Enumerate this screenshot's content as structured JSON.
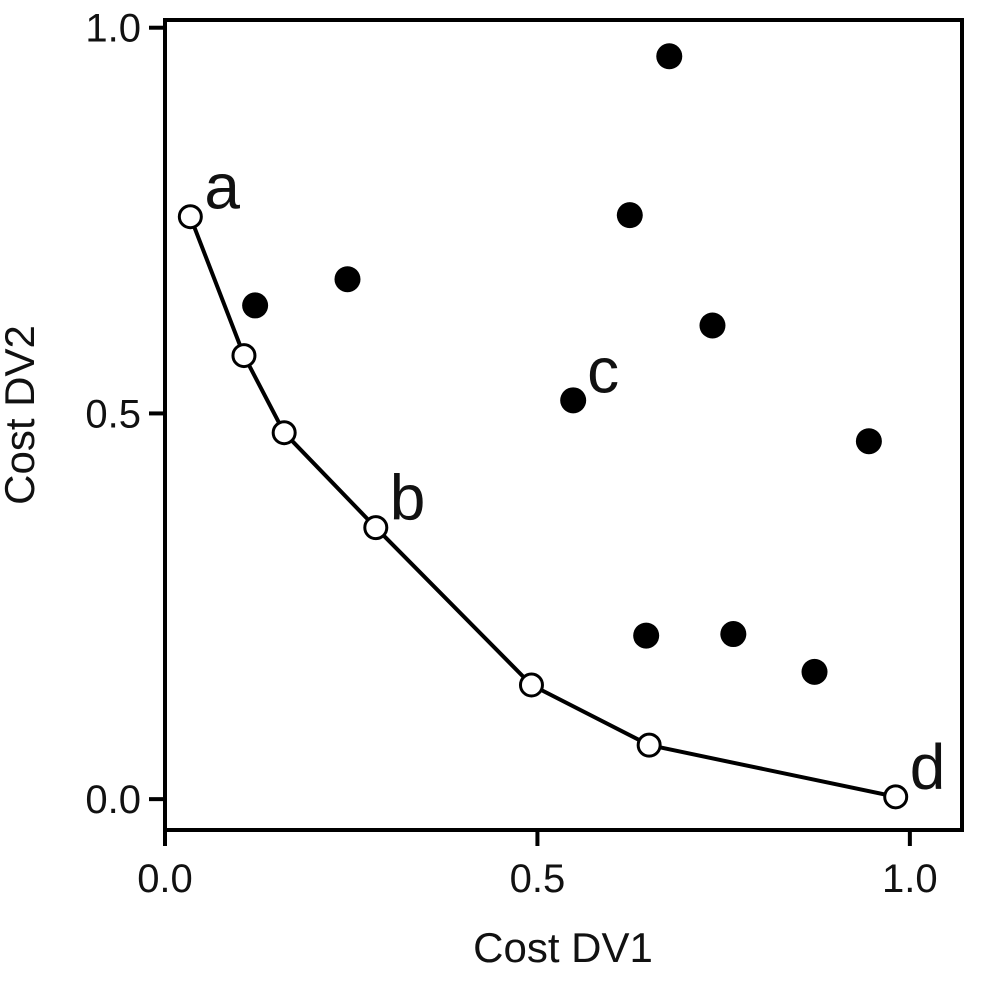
{
  "chart_data": {
    "type": "scatter",
    "xlabel": "Cost DV1",
    "ylabel": "Cost DV2",
    "xlim": [
      0.0,
      1.07
    ],
    "ylim": [
      -0.04,
      1.01
    ],
    "x_ticks": [
      {
        "value": 0.0,
        "label": "0.0"
      },
      {
        "value": 0.5,
        "label": "0.5"
      },
      {
        "value": 1.0,
        "label": "1.0"
      }
    ],
    "y_ticks": [
      {
        "value": 0.0,
        "label": "0.0"
      },
      {
        "value": 0.5,
        "label": "0.5"
      },
      {
        "value": 1.0,
        "label": "1.0"
      }
    ],
    "grid": false,
    "series": [
      {
        "marker": "open-circle",
        "connected": true,
        "color": "#000000",
        "points": [
          {
            "x": 0.034,
            "y": 0.755
          },
          {
            "x": 0.106,
            "y": 0.575
          },
          {
            "x": 0.16,
            "y": 0.475
          },
          {
            "x": 0.283,
            "y": 0.352
          },
          {
            "x": 0.492,
            "y": 0.148
          },
          {
            "x": 0.65,
            "y": 0.07
          },
          {
            "x": 0.981,
            "y": 0.003
          }
        ]
      },
      {
        "marker": "filled-circle",
        "connected": false,
        "color": "#000000",
        "points": [
          {
            "x": 0.121,
            "y": 0.64
          },
          {
            "x": 0.245,
            "y": 0.674
          },
          {
            "x": 0.548,
            "y": 0.517
          },
          {
            "x": 0.624,
            "y": 0.757
          },
          {
            "x": 0.677,
            "y": 0.963
          },
          {
            "x": 0.735,
            "y": 0.614
          },
          {
            "x": 0.646,
            "y": 0.212
          },
          {
            "x": 0.763,
            "y": 0.214
          },
          {
            "x": 0.872,
            "y": 0.165
          },
          {
            "x": 0.945,
            "y": 0.464
          }
        ]
      }
    ],
    "annotations": [
      {
        "text": "a",
        "x": 0.034,
        "y": 0.755,
        "anchor": "upper-right"
      },
      {
        "text": "b",
        "x": 0.283,
        "y": 0.352,
        "anchor": "upper-right"
      },
      {
        "text": "c",
        "x": 0.548,
        "y": 0.517,
        "anchor": "upper-right"
      },
      {
        "text": "d",
        "x": 0.981,
        "y": 0.003,
        "anchor": "upper-right"
      }
    ]
  }
}
